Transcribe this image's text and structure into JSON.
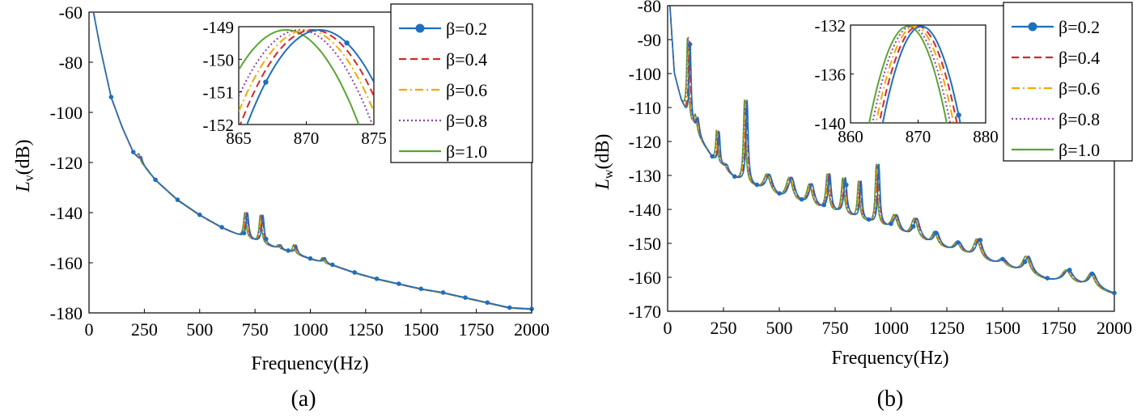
{
  "series_colors": [
    "#1f6fc0",
    "#d62728",
    "#f2a900",
    "#8e44ad",
    "#5aa532"
  ],
  "chart_data": [
    {
      "id": "a",
      "type": "line",
      "caption": "(a)",
      "xlabel": "Frequency(Hz)",
      "ylabel_main": "L",
      "ylabel_sub": "v",
      "ylabel_unit": "(dB)",
      "xlim": [
        0,
        2000
      ],
      "ylim": [
        -180,
        -60
      ],
      "xticks": [
        "0",
        "250",
        "500",
        "750",
        "1000",
        "1250",
        "1500",
        "1750",
        "2000"
      ],
      "yticks": [
        "-60",
        "-80",
        "-100",
        "-120",
        "-140",
        "-160",
        "-180"
      ],
      "baseline": [
        [
          20,
          -60
        ],
        [
          50,
          -74
        ],
        [
          100,
          -94
        ],
        [
          150,
          -106
        ],
        [
          200,
          -116
        ],
        [
          300,
          -127
        ],
        [
          400,
          -135
        ],
        [
          500,
          -141
        ],
        [
          600,
          -146
        ],
        [
          700,
          -150
        ],
        [
          800,
          -153
        ],
        [
          900,
          -155.5
        ],
        [
          1000,
          -158.5
        ],
        [
          1100,
          -161
        ],
        [
          1200,
          -164
        ],
        [
          1300,
          -166.5
        ],
        [
          1400,
          -168.5
        ],
        [
          1500,
          -170.5
        ],
        [
          1600,
          -172
        ],
        [
          1700,
          -174
        ],
        [
          1800,
          -176
        ],
        [
          1900,
          -178
        ],
        [
          2000,
          -178.5
        ]
      ],
      "peaks": [
        [
          230,
          -117,
          6
        ],
        [
          710,
          -140,
          7
        ],
        [
          780,
          -141,
          7
        ],
        [
          860,
          -153,
          7
        ],
        [
          930,
          -153,
          7
        ],
        [
          1060,
          -158,
          7
        ]
      ],
      "legend": [
        "β=0.2",
        "β=0.4",
        "β=0.6",
        "β=0.8",
        "β=1.0"
      ],
      "inset": {
        "xlim": [
          865,
          875
        ],
        "ylim": [
          -152,
          -149
        ],
        "xticks": [
          "865",
          "870",
          "875"
        ],
        "yticks": [
          "-149",
          "-150",
          "-151",
          "-152"
        ],
        "peak_centers": [
          871,
          870.5,
          870,
          869.5,
          868.5
        ],
        "peak_value": -149.1,
        "curvature": 0.1
      }
    },
    {
      "id": "b",
      "type": "line",
      "caption": "(b)",
      "xlabel": "Frequency(Hz)",
      "ylabel_main": "L",
      "ylabel_sub": "w",
      "ylabel_unit": "(dB)",
      "xlim": [
        0,
        2000
      ],
      "ylim": [
        -170,
        -80
      ],
      "xticks": [
        "0",
        "250",
        "500",
        "750",
        "1000",
        "1250",
        "1500",
        "1750",
        "2000"
      ],
      "yticks": [
        "-80",
        "-90",
        "-100",
        "-110",
        "-120",
        "-130",
        "-140",
        "-150",
        "-160",
        "-170"
      ],
      "baseline": [
        [
          10,
          -80
        ],
        [
          30,
          -100
        ],
        [
          60,
          -108
        ],
        [
          100,
          -115
        ],
        [
          200,
          -125
        ],
        [
          300,
          -131
        ],
        [
          400,
          -134
        ],
        [
          500,
          -137
        ],
        [
          600,
          -139
        ],
        [
          700,
          -140.5
        ],
        [
          800,
          -142
        ],
        [
          900,
          -144
        ],
        [
          1000,
          -146
        ],
        [
          1100,
          -149
        ],
        [
          1200,
          -151
        ],
        [
          1300,
          -153
        ],
        [
          1400,
          -155
        ],
        [
          1500,
          -157
        ],
        [
          1600,
          -159
        ],
        [
          1700,
          -161
        ],
        [
          1800,
          -162
        ],
        [
          1900,
          -163
        ],
        [
          2000,
          -165
        ]
      ],
      "peaks": [
        [
          95,
          -90,
          5
        ],
        [
          130,
          -113,
          8
        ],
        [
          225,
          -117,
          5
        ],
        [
          260,
          -127,
          8
        ],
        [
          350,
          -108,
          6
        ],
        [
          450,
          -130,
          18
        ],
        [
          550,
          -131,
          18
        ],
        [
          640,
          -133,
          15
        ],
        [
          720,
          -130,
          8
        ],
        [
          790,
          -131,
          8
        ],
        [
          860,
          -132,
          6
        ],
        [
          940,
          -127,
          6
        ],
        [
          1020,
          -142,
          15
        ],
        [
          1110,
          -143,
          18
        ],
        [
          1200,
          -147,
          15
        ],
        [
          1300,
          -150,
          18
        ],
        [
          1390,
          -149,
          18
        ],
        [
          1500,
          -155,
          20
        ],
        [
          1610,
          -154,
          20
        ],
        [
          1790,
          -158,
          25
        ],
        [
          1900,
          -159,
          20
        ]
      ],
      "legend": [
        "β=0.2",
        "β=0.4",
        "β=0.6",
        "β=0.8",
        "β=1.0"
      ],
      "inset": {
        "xlim": [
          860,
          880
        ],
        "ylim": [
          -140,
          -132
        ],
        "xticks": [
          "860",
          "870",
          "880"
        ],
        "yticks": [
          "-132",
          "-136",
          "-140"
        ],
        "peak_centers": [
          870.5,
          870,
          869.5,
          869,
          868.5
        ],
        "peak_value": -132.1,
        "curvature": 0.09
      }
    }
  ]
}
